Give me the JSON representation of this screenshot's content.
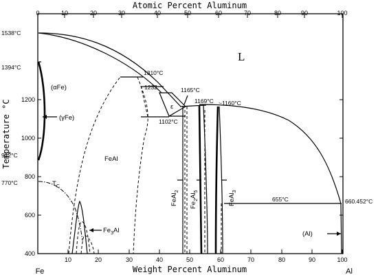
{
  "top_axis": {
    "title": "Atomic Percent Aluminum",
    "ticks": [
      "0",
      "10",
      "20",
      "30",
      "40",
      "50",
      "60",
      "70",
      "80",
      "90",
      "100"
    ]
  },
  "bottom_axis": {
    "title": "Weight Percent Aluminum",
    "ticks": [
      "0",
      "10",
      "20",
      "30",
      "40",
      "50",
      "60",
      "70",
      "80",
      "90",
      "100"
    ],
    "left_end": "Fe",
    "right_end": "Al"
  },
  "left_axis": {
    "title": "Temperature °C",
    "ticks": [
      "400",
      "600",
      "800",
      "1000",
      "1200"
    ]
  },
  "temperature_labels": {
    "t1538": "1538°C",
    "t1394": "1394°C",
    "t912": "912°C",
    "t770": "770°C",
    "t660": "660.452°C"
  },
  "annotations": {
    "t1310": "1310°C",
    "t1232": "1232",
    "t1165": "1165°C",
    "t1169": "1169°C",
    "t1160": "~1160°C",
    "t1102": "1102°C",
    "t655": "655°C"
  },
  "phases": {
    "liquid": "L",
    "alpha_fe": "(αFe)",
    "gamma_fe": "(γFe)",
    "fe_al": "FeAl",
    "epsilon": "ε",
    "tc": "T",
    "tc_sub": "C",
    "fe3al": "Fe",
    "fe3al_sub": "3",
    "fe3al_end": "Al",
    "feal2": "FeAl",
    "feal2_sub": "2",
    "fe2al5": "Fe",
    "fe2al5_sub1": "2",
    "fe2al5_mid": "Al",
    "fe2al5_sub2": "5",
    "feal3": "FeAl",
    "feal3_sub": "3",
    "al": "(Al)"
  }
}
